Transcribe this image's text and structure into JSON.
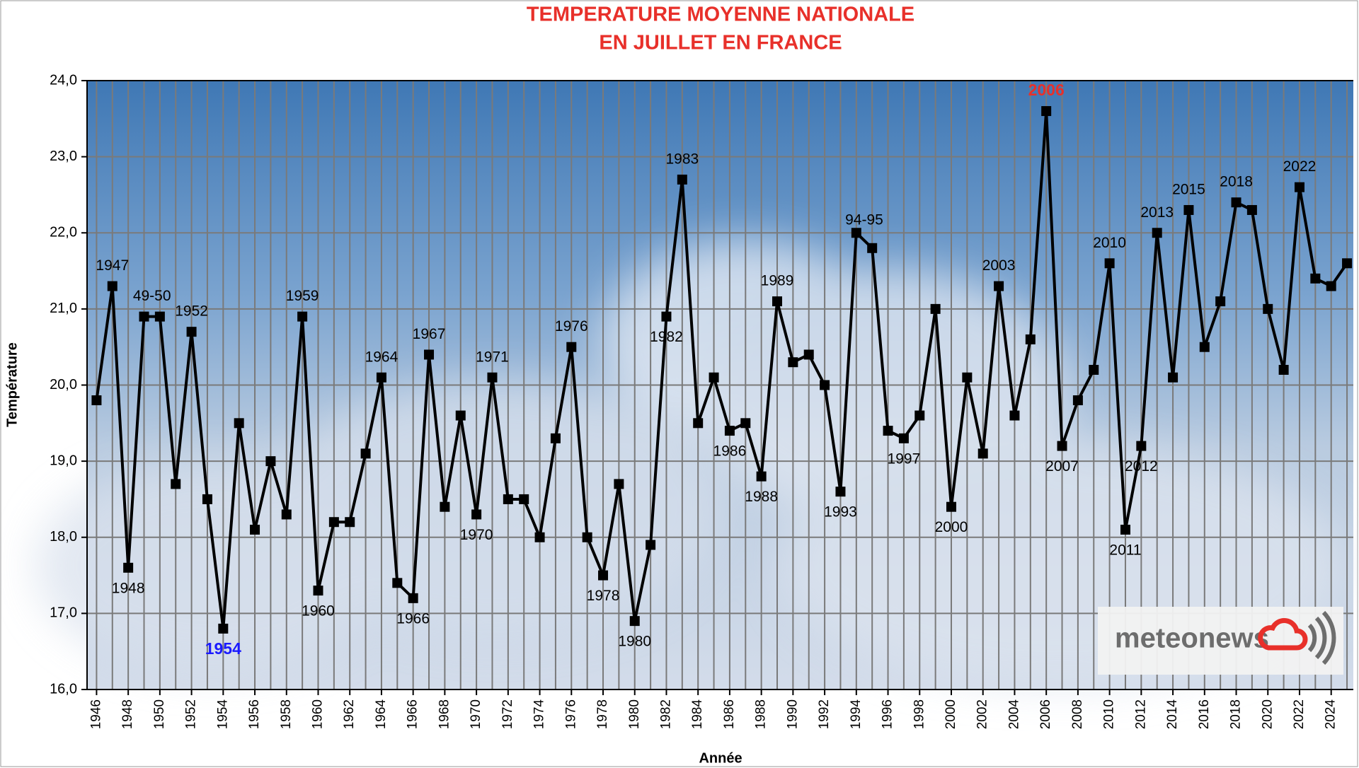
{
  "chart_data": {
    "type": "line",
    "title": [
      "TEMPERATURE MOYENNE NATIONALE",
      "EN JUILLET EN FRANCE"
    ],
    "x_label": "Année",
    "y_label": "Température",
    "x": [
      1946,
      1947,
      1948,
      1949,
      1950,
      1951,
      1952,
      1953,
      1954,
      1955,
      1956,
      1957,
      1958,
      1959,
      1960,
      1961,
      1962,
      1963,
      1964,
      1965,
      1966,
      1967,
      1968,
      1969,
      1970,
      1971,
      1972,
      1973,
      1974,
      1975,
      1976,
      1977,
      1978,
      1979,
      1980,
      1981,
      1982,
      1983,
      1984,
      1985,
      1986,
      1987,
      1988,
      1989,
      1990,
      1991,
      1992,
      1993,
      1994,
      1995,
      1996,
      1997,
      1998,
      1999,
      2000,
      2001,
      2002,
      2003,
      2004,
      2005,
      2006,
      2007,
      2008,
      2009,
      2010,
      2011,
      2012,
      2013,
      2014,
      2015,
      2016,
      2017,
      2018,
      2019,
      2020,
      2021,
      2022,
      2023,
      2024,
      2025
    ],
    "series": [
      {
        "color": "#000000",
        "values": [
          19.8,
          21.3,
          17.6,
          20.9,
          20.9,
          18.7,
          20.7,
          18.5,
          16.8,
          19.5,
          18.1,
          19.0,
          18.3,
          20.9,
          17.3,
          18.2,
          18.2,
          19.1,
          20.1,
          17.4,
          17.2,
          20.4,
          18.4,
          19.6,
          18.3,
          20.1,
          18.5,
          18.5,
          18.0,
          19.3,
          20.5,
          18.0,
          17.5,
          18.7,
          16.9,
          17.9,
          20.9,
          22.7,
          19.5,
          20.1,
          19.4,
          19.5,
          18.8,
          21.1,
          20.3,
          20.4,
          20.0,
          18.6,
          22.0,
          21.8,
          19.4,
          19.3,
          19.6,
          21.0,
          18.4,
          20.1,
          19.1,
          21.3,
          19.6,
          20.6,
          23.6,
          19.2,
          19.8,
          20.2,
          21.6,
          18.1,
          19.2,
          22.0,
          20.1,
          22.3,
          20.5,
          21.1,
          22.4,
          22.3,
          21.0,
          20.2,
          22.6,
          21.4,
          21.3,
          21.6
        ]
      }
    ],
    "xlim": [
      1945.4,
      2025.4
    ],
    "xticks": [
      1946,
      1948,
      1950,
      1952,
      1954,
      1956,
      1958,
      1960,
      1962,
      1964,
      1966,
      1968,
      1970,
      1972,
      1974,
      1976,
      1978,
      1980,
      1982,
      1984,
      1986,
      1988,
      1990,
      1992,
      1994,
      1996,
      1998,
      2000,
      2002,
      2004,
      2006,
      2008,
      2010,
      2012,
      2014,
      2016,
      2018,
      2020,
      2022,
      2024
    ],
    "ylim": [
      16,
      24
    ],
    "yticks": [
      {
        "value": 16,
        "label": "16,0"
      },
      {
        "value": 17,
        "label": "17,0"
      },
      {
        "value": 18,
        "label": "18,0"
      },
      {
        "value": 19,
        "label": "19,0"
      },
      {
        "value": 20,
        "label": "20,0"
      },
      {
        "value": 21,
        "label": "21,0"
      },
      {
        "value": 22,
        "label": "22,0"
      },
      {
        "value": 23,
        "label": "23,0"
      },
      {
        "value": 24,
        "label": "24,0"
      }
    ],
    "grid": true,
    "annotations": [
      {
        "text": "1947",
        "x": 1947
      },
      {
        "text": "1948",
        "x": 1948
      },
      {
        "text": "49-50",
        "x": 1949.5
      },
      {
        "text": "1952",
        "x": 1952
      },
      {
        "text": "1954",
        "x": 1954,
        "color": "#1a1aff"
      },
      {
        "text": "1959",
        "x": 1959
      },
      {
        "text": "1960",
        "x": 1960
      },
      {
        "text": "1964",
        "x": 1964
      },
      {
        "text": "1966",
        "x": 1966
      },
      {
        "text": "1967",
        "x": 1967
      },
      {
        "text": "1970",
        "x": 1970
      },
      {
        "text": "1971",
        "x": 1971
      },
      {
        "text": "1976",
        "x": 1976
      },
      {
        "text": "1978",
        "x": 1978
      },
      {
        "text": "1980",
        "x": 1980
      },
      {
        "text": "1982",
        "x": 1982
      },
      {
        "text": "1983",
        "x": 1983
      },
      {
        "text": "1986",
        "x": 1986
      },
      {
        "text": "1988",
        "x": 1988
      },
      {
        "text": "1989",
        "x": 1989
      },
      {
        "text": "1993",
        "x": 1993
      },
      {
        "text": "94-95",
        "x": 1994.5
      },
      {
        "text": "1997",
        "x": 1997
      },
      {
        "text": "2000",
        "x": 2000
      },
      {
        "text": "2003",
        "x": 2003
      },
      {
        "text": "2006",
        "x": 2006,
        "color": "#e8302a"
      },
      {
        "text": "2007",
        "x": 2007
      },
      {
        "text": "2010",
        "x": 2010
      },
      {
        "text": "2011",
        "x": 2011
      },
      {
        "text": "2012",
        "x": 2012
      },
      {
        "text": "2013",
        "x": 2013
      },
      {
        "text": "2015",
        "x": 2015
      },
      {
        "text": "2018",
        "x": 2018
      },
      {
        "text": "2022",
        "x": 2022
      }
    ],
    "title_color": "#e8302a",
    "logo": "meteonews"
  }
}
